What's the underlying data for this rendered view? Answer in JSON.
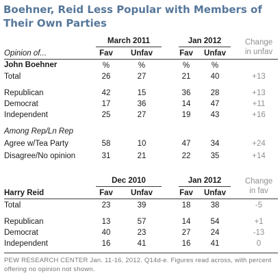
{
  "title": "Boehner, Reid Less Popular with Members of Their Own Parties",
  "boehner": {
    "period1": "March 2011",
    "period2": "Jan 2012",
    "opinion_label": "Opinion of...",
    "fav": "Fav",
    "unfav": "Unfav",
    "change_line1": "Change",
    "change_line2": "in unfav",
    "name": "John Boehner",
    "pct": "%",
    "rows": [
      {
        "label": "Total",
        "v": [
          "26",
          "27",
          "21",
          "40"
        ],
        "change": "+13"
      },
      {
        "label": "Republican",
        "v": [
          "42",
          "15",
          "36",
          "28"
        ],
        "change": "+13"
      },
      {
        "label": "Democrat",
        "v": [
          "17",
          "36",
          "14",
          "47"
        ],
        "change": "+11"
      },
      {
        "label": "Independent",
        "v": [
          "25",
          "27",
          "19",
          "43"
        ],
        "change": "+16"
      }
    ],
    "subgroup_label": "Among Rep/Ln Rep",
    "subrows": [
      {
        "label": "Agree w/Tea Party",
        "v": [
          "58",
          "10",
          "47",
          "34"
        ],
        "change": "+24"
      },
      {
        "label": "Disagree/No opinion",
        "v": [
          "31",
          "21",
          "22",
          "35"
        ],
        "change": "+14"
      }
    ]
  },
  "reid": {
    "period1": "Dec 2010",
    "period2": "Jan 2012",
    "fav": "Fav",
    "unfav": "Unfav",
    "change_line1": "Change",
    "change_line2": "in fav",
    "name": "Harry Reid",
    "rows": [
      {
        "label": "Total",
        "v": [
          "23",
          "39",
          "18",
          "38"
        ],
        "change": "-5"
      },
      {
        "label": "Republican",
        "v": [
          "13",
          "57",
          "14",
          "54"
        ],
        "change": "+1"
      },
      {
        "label": "Democrat",
        "v": [
          "40",
          "23",
          "27",
          "24"
        ],
        "change": "-13"
      },
      {
        "label": "Independent",
        "v": [
          "16",
          "41",
          "16",
          "41"
        ],
        "change": "0"
      }
    ]
  },
  "footnote": "PEW RESEARCH CENTER Jan. 11-16, 2012. Q14d-e. Figures read across, with percent offering no opinion not shown."
}
